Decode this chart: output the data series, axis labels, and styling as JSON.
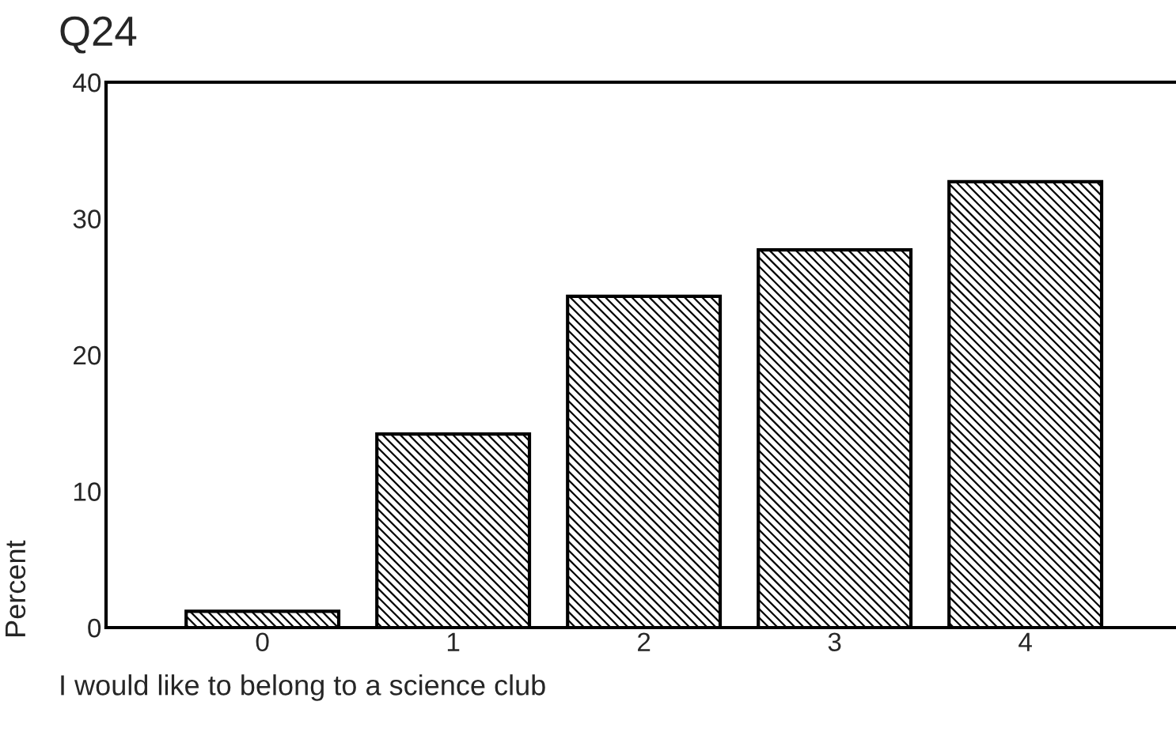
{
  "chart_data": {
    "type": "bar",
    "title": "Q24",
    "xlabel": "I would like to belong to a science club",
    "ylabel": "Percent",
    "categories": [
      "0",
      "1",
      "2",
      "3",
      "4"
    ],
    "values": [
      1.2,
      14.2,
      24.3,
      27.7,
      32.7
    ],
    "color": "#000000",
    "ylim": [
      0,
      40
    ],
    "yticks": [
      0,
      10,
      20,
      30,
      40
    ],
    "grid": false,
    "legend": false
  }
}
